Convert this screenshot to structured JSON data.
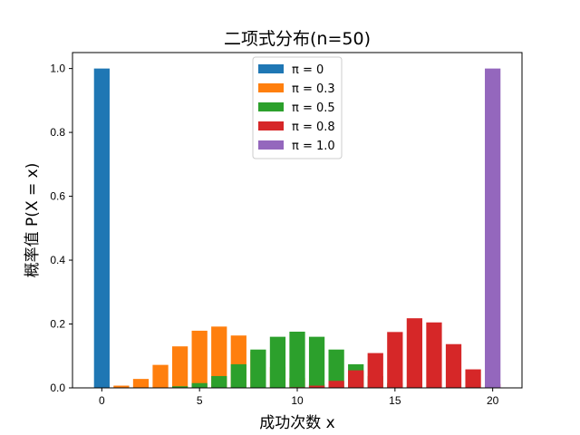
{
  "chart_data": {
    "type": "bar",
    "title": "二项式分布(n=50)",
    "xlabel": "成功次数 x",
    "ylabel": "概率值 P(X = x)",
    "xlim": [
      -1.5,
      21.5
    ],
    "ylim": [
      0,
      1.05
    ],
    "xticks": [
      0,
      5,
      10,
      15,
      20
    ],
    "yticks": [
      0.0,
      0.2,
      0.4,
      0.6,
      0.8,
      1.0
    ],
    "legend_position": "top-center",
    "grid": false,
    "x": [
      0,
      1,
      2,
      3,
      4,
      5,
      6,
      7,
      8,
      9,
      10,
      11,
      12,
      13,
      14,
      15,
      16,
      17,
      18,
      19,
      20
    ],
    "series": [
      {
        "name": "π = 0",
        "color": "#1f77b4",
        "values": [
          1.0,
          0,
          0,
          0,
          0,
          0,
          0,
          0,
          0,
          0,
          0,
          0,
          0,
          0,
          0,
          0,
          0,
          0,
          0,
          0,
          0
        ]
      },
      {
        "name": "π = 0.3",
        "color": "#ff7f0e",
        "values": [
          0.001,
          0.007,
          0.028,
          0.072,
          0.13,
          0.179,
          0.192,
          0.164,
          0.114,
          0.065,
          0.031,
          0.012,
          0.004,
          0.001,
          0.0,
          0.0,
          0.0,
          0.0,
          0.0,
          0.0,
          0.0
        ]
      },
      {
        "name": "π = 0.5",
        "color": "#2ca02c",
        "values": [
          0.0,
          0.0,
          0.0,
          0.001,
          0.005,
          0.015,
          0.037,
          0.074,
          0.12,
          0.16,
          0.176,
          0.16,
          0.12,
          0.074,
          0.037,
          0.015,
          0.005,
          0.001,
          0.0,
          0.0,
          0.0
        ]
      },
      {
        "name": "π = 0.8",
        "color": "#d62728",
        "values": [
          0.0,
          0.0,
          0.0,
          0.0,
          0.0,
          0.0,
          0.0,
          0.0,
          0.0,
          0.0,
          0.002,
          0.007,
          0.022,
          0.055,
          0.109,
          0.175,
          0.218,
          0.205,
          0.137,
          0.058,
          0.012
        ]
      },
      {
        "name": "π = 1.0",
        "color": "#9467bd",
        "values": [
          0,
          0,
          0,
          0,
          0,
          0,
          0,
          0,
          0,
          0,
          0,
          0,
          0,
          0,
          0,
          0,
          0,
          0,
          0,
          0,
          1.0
        ]
      }
    ]
  }
}
